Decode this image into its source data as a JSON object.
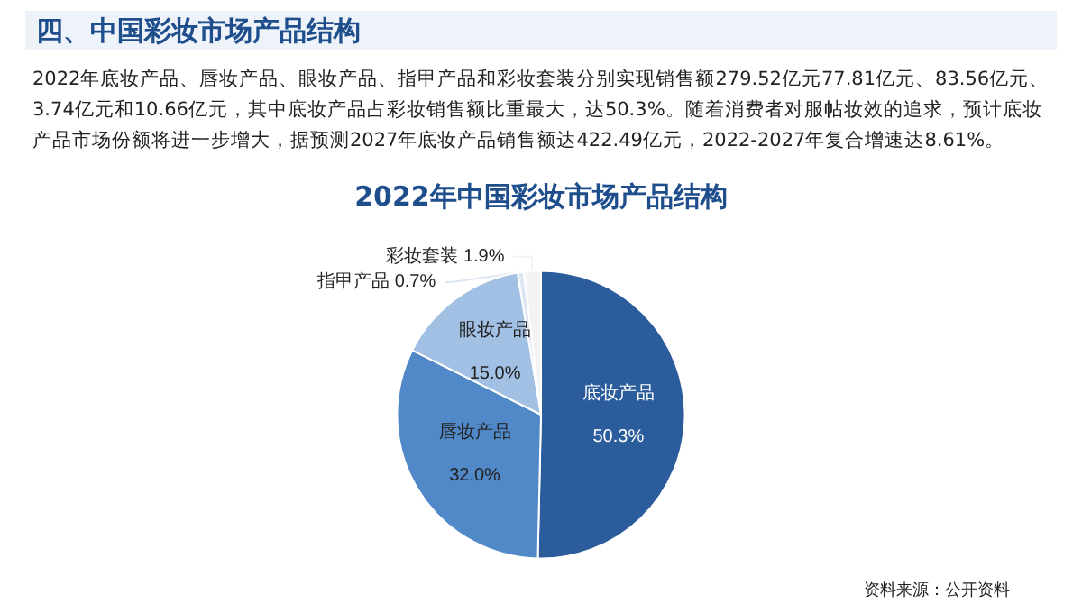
{
  "chart_data": {
    "type": "pie",
    "title": "四、中国彩妆市场产品结构",
    "subtitle": "2022年底妆产品、唇妆产品、眼妆产品、指甲产品和彩妆套装分别实现销售额279.52亿元77.81亿元、83.56亿元、3.74亿元和10.66亿元，其中底妆产品占彩妆销售额比重最大，达50.3%。随着消费者对服帖妆效的追求，预计底妆产品市场份额将进一步增大，据预测2027年底妆产品销售额达422.49亿元，2022-2027年复合增速达8.61%。",
    "annotations": [
      "2022年中国彩妆市场产品结构",
      "资料来源：公开资料"
    ],
    "categories": [
      "底妆产品",
      "唇妆产品",
      "眼妆产品",
      "指甲产品",
      "彩妆套装"
    ],
    "values": [
      50.3,
      32.0,
      15.0,
      0.7,
      1.9
    ],
    "colors": [
      "#2b5c9b",
      "#5088c8",
      "#a2c0e4",
      "#dde6f2",
      "#f3f3f3"
    ],
    "value_labels": [
      "50.3%",
      "32.0%",
      "15.0%",
      "0.7%",
      "1.9%"
    ],
    "legend": false
  }
}
